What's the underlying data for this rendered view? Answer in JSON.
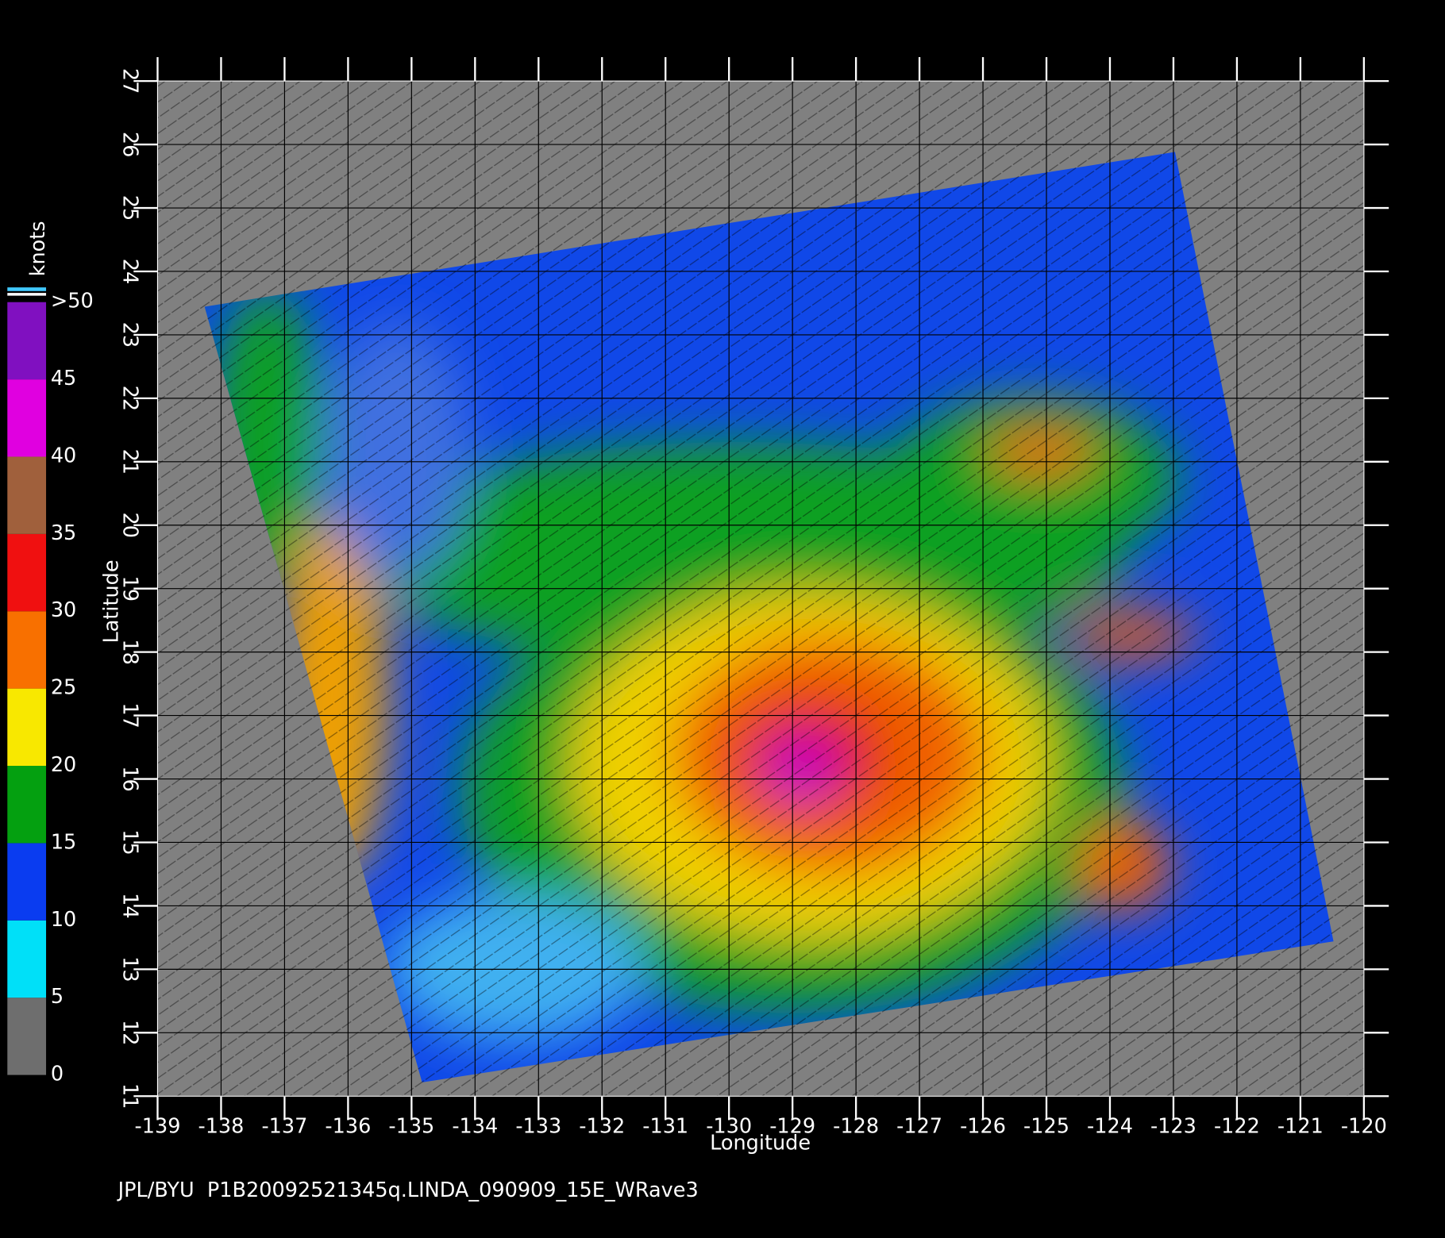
{
  "chart_data": {
    "type": "map",
    "xlabel": "Longitude",
    "ylabel": "Latitude",
    "xlim": [
      -139,
      -120
    ],
    "ylim": [
      11,
      27
    ],
    "xticks": [
      -139,
      -138,
      -137,
      -136,
      -135,
      -134,
      -133,
      -132,
      -131,
      -130,
      -129,
      -128,
      -127,
      -126,
      -125,
      -124,
      -123,
      -122,
      -121,
      -120
    ],
    "yticks": [
      11,
      12,
      13,
      14,
      15,
      16,
      17,
      18,
      19,
      20,
      21,
      22,
      23,
      24,
      25,
      26,
      27
    ],
    "grid": true,
    "colorbar": {
      "title": "knots",
      "lim": [
        0,
        50
      ],
      "ticks": [
        0,
        5,
        10,
        15,
        20,
        25,
        30,
        35,
        40,
        {
          "value": 45,
          "label": "45"
        },
        {
          "value": 50,
          "label": ">50"
        }
      ],
      "colors": [
        "#6e6e6e",
        "#00e0f8",
        "#0a3cf0",
        "#04a010",
        "#f8e800",
        "#f87000",
        "#f01010",
        "#a0603c",
        "#e000e0",
        "#8010c0"
      ]
    },
    "footer": "JPL/BYU  P1B20092521345q.LINDA_090909_15E_WRave3"
  }
}
